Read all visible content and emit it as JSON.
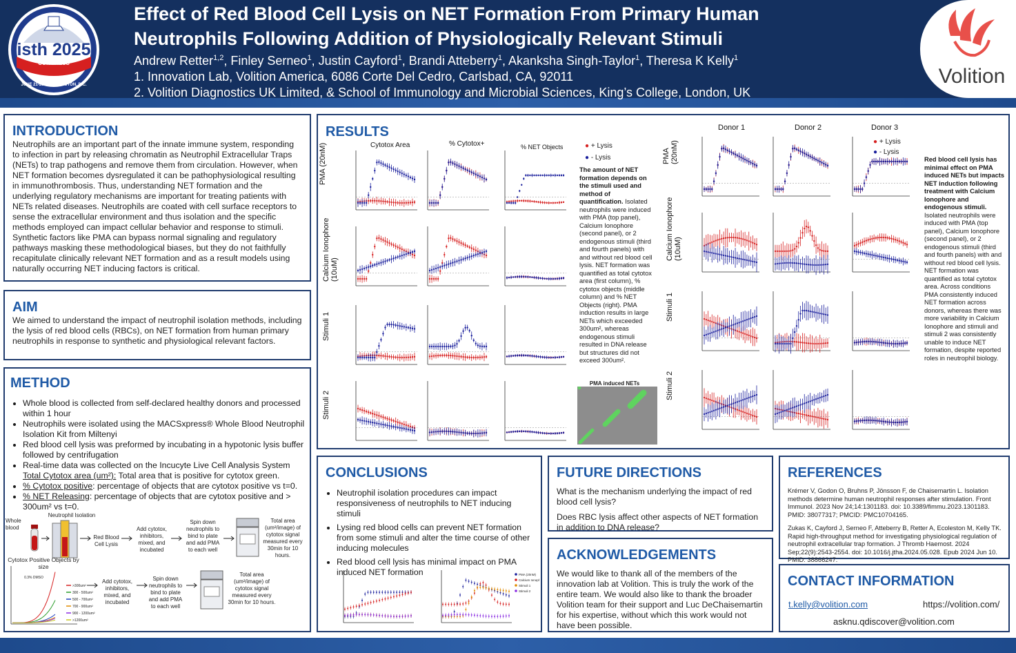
{
  "header": {
    "title_line1": "Effect of Red Blood Cell Lysis on NET Formation From Primary Human",
    "title_line2": "Neutrophils Following Addition of Physiologically Relevant Stimuli",
    "authors": [
      "Andrew Retter",
      "Finley Serneo",
      "Justin Cayford",
      "Brandi Atteberry",
      "Akanksha Singh-Taylor",
      "Theresa K Kelly"
    ],
    "author_sups": [
      "1,2",
      "1",
      "1",
      "1",
      "1",
      "1"
    ],
    "affiliation1": "1. Innovation Lab, Volition America, 6086 Corte Del Cedro, Carlsbad, CA, 92011",
    "affiliation2": "2. Volition Diagnostics UK Limited, &  School of Immunology and Microbial Sciences, King’s College, London, UK",
    "congress_logo": {
      "name": "isth 2025",
      "sub": "CONGRESS",
      "date": "JUNE 21-25 • WASHINGTON, D.C."
    },
    "brand": "Volition"
  },
  "introduction": {
    "heading": "INTRODUCTION",
    "text": "Neutrophils are an important part of the innate immune system, responding to infection in part by releasing chromatin as Neutrophil Extracellular Traps (NETs) to trap pathogens and remove them from circulation. However, when NET formation becomes dysregulated it can be pathophysiological resulting in immunothrombosis. Thus, understanding NET formation and the underlying regulatory mechanisms are important for treating patients with NETs related diseases. Neutrophils are coated with cell surface receptors to sense the extracellular environment and thus isolation and the specific methods employed can impact cellular behavior and response to stimuli. Synthetic factors like PMA can bypass normal signaling and regulatory pathways masking these methodological biases, but they do not faithfully recapitulate clinically relevant NET formation and as a result models using naturally occurring NET inducing factors is critical."
  },
  "aim": {
    "heading": "AIM",
    "text": "We aimed to understand the impact of neutrophil isolation methods, including the lysis of red blood cells (RBCs), on NET formation from human primary neutrophils in response to synthetic and physiological relevant factors."
  },
  "method": {
    "heading": "METHOD",
    "bullets": [
      "Whole blood is collected from self-declared healthy donors and processed within 1 hour",
      "Neutrophils were isolated using the MACSxpress® Whole Blood Neutrophil Isolation Kit from Miltenyi",
      "Red blood cell lysis was preformed by incubating in a hypotonic lysis buffer followed by centrifugation",
      "Real-time data was collected on the Incucyte Live Cell Analysis System"
    ],
    "def1_term": "Total Cytotox area (um²):",
    "def1_text": " Total area that is positive for cytotox green.",
    "def2_term": "% Cytotox positive",
    "def2_text": ": percentage of objects that are cytotox positive vs t=0.",
    "def3_term": "% NET Releasing",
    "def3_text": ": percentage of objects that are cytotox positive and > 300um² vs t=0.",
    "flow": {
      "whole_blood": "Whole blood",
      "neutrophil_isolation": "Neutrophil Isolation",
      "rbc_lysis": "Red Blood Cell Lysis",
      "add_cytotox_1": "Add cytotox, inhibitors, mixed, and incubated",
      "spin_1": "Spin down neutrophils to bind to plate and add PMA to each well",
      "total_area_1": "Total area (um²/image) of cytotox signal measured every 30min for 10 hours.",
      "add_cytotox_2": "Add cytotox, inhibitors, mixed, and incubated",
      "spin_2": "Spin down neutrophils to bind to plate and add PMA to each well",
      "total_area_2": "Total area (um²/image) of cytotox signal measured every 30min for 10 hours."
    },
    "size_chart": {
      "title": "Cytotox Positive Objects by size",
      "annotation": "0.3% DMSO",
      "legend": [
        ">300um²",
        "300 - 500um²",
        "500 - 700um²",
        "700 - 900um²",
        "900 - 1200um²",
        ">1200um²"
      ],
      "colors": [
        "#d62020",
        "#2a9d2a",
        "#1f3fbf",
        "#e08a00",
        "#8a2be2",
        "#c8c820"
      ]
    }
  },
  "results": {
    "heading": "RESULTS",
    "col_titles": [
      "Cytotox Area",
      "% Cytotox+",
      "% NET Objects"
    ],
    "row_labels": [
      "PMA\n(20nM)",
      "Calcium Ionophore\n(10uM)",
      "Stimuli 1",
      "Stimuli 2"
    ],
    "legend": [
      "+ Lysis",
      "- Lysis"
    ],
    "text_bold": "The amount of NET formation depends on the stimuli used and method of quantification.",
    "text": " Isolated neutrophils were induced with PMA (top panel), Calcium Ionophore (second panel), or 2 endogenous stimuli (third and fourth panels) with and without red blood cell lysis. NET formation was quantified as total cytotox area (first column), % cytotox objects (middle column) and % NET Objects (right). PMA induction results in large NETs which exceeded 300um², whereas endogenous stimuli resulted in DNA release but structures did not exceed 300um².",
    "image_caption": "PMA induced NETs",
    "donor_titles": [
      "Donor 1",
      "Donor 2",
      "Donor 3"
    ],
    "donor_text_bold": "Red blood cell lysis has minimal effect on PMA induced NETs but impacts NET induction following treatment with Calcium Ionophore and endogenous stimuli.",
    "donor_text": " Isolated neutrophils were induced with PMA (top panel), Calcium Ionophore (second panel), or 2 endogenous stimuli (third and fourth panels) with and without red blood cell lysis. NET formation was quantified as total cytotox area. Across conditions PMA consistently induced NET formation across donors, whereas there was more variability in Calcium Ionophore and stimuli and stimuli 2 was consistently unable to induce NET formation, despite reported roles in neutrophil biology.",
    "colors": {
      "plus_lysis": "#d62020",
      "minus_lysis": "#1a1f9c"
    }
  },
  "conclusions": {
    "heading": "CONCLUSIONS",
    "bullets": [
      "Neutrophil isolation procedures can impact responsiveness of neutrophils to NET inducing stimuli",
      "Lysing red blood cells can prevent NET formation from some stimuli and alter the time course of other inducing molecules",
      "Red blood cell lysis has minimal impact on PMA induced NET formation"
    ],
    "chart_legend": [
      "PMA (20nM)",
      "Calcium Ionophore (10uM)",
      "Stimuli 1",
      "Stimuli 2"
    ]
  },
  "future": {
    "heading": "FUTURE DIRECTIONS",
    "q1": "What is the mechanism underlying the impact of red blood cell lysis?",
    "q2": "Does RBC lysis affect other aspects of NET formation in addition to DNA release?"
  },
  "acknowledgements": {
    "heading": "ACKNOWLEDGEMENTS",
    "text": "We would like to thank all of the members of the innovation lab at Volition. This is truly the work of the entire team. We would also like to thank the broader Volition team for their support and Luc DeChaisemartin for his expertise, without which this work would not have been possible."
  },
  "references": {
    "heading": "REFERENCES",
    "ref1": "Krémer V, Godon O, Bruhns P, Jönsson F, de Chaisemartin L. Isolation methods determine human neutrophil responses after stimulation. Front Immunol. 2023 Nov 24;14:1301183. doi: 10.3389/fimmu.2023.1301183. PMID: 38077317; PMCID: PMC10704165.",
    "ref2": "Zukas K, Cayford J, Serneo F, Atteberry B, Retter A, Ecoleston M, Kelly TK. Rapid high-throughput method for investigating physiological regulation of neutrophil extracellular trap formation. J Thromb Haemost. 2024 Sep;22(9):2543-2554. doi: 10.1016/j.jtha.2024.05.028. Epub 2024 Jun 10. PMID: 38866247."
  },
  "contact": {
    "heading": "CONTACT INFORMATION",
    "email": "t.kelly@volition.com",
    "website": "https://volition.com/",
    "email2": "asknu.qdiscover@volition.com"
  }
}
